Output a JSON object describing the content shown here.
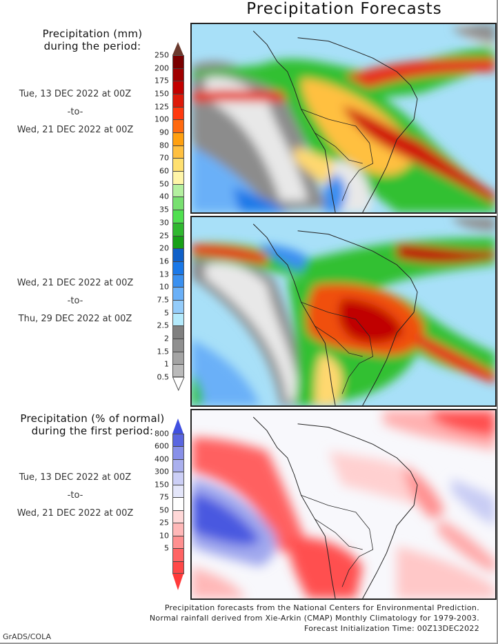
{
  "title": "Precipitation Forecasts",
  "legend_mm": {
    "title_line1": "Precipitation (mm)",
    "title_line2": "during the period:",
    "levels": [
      "250",
      "200",
      "175",
      "150",
      "125",
      "100",
      "90",
      "80",
      "70",
      "60",
      "50",
      "40",
      "35",
      "30",
      "25",
      "20",
      "16",
      "13",
      "10",
      "7.5",
      "5",
      "2.5",
      "2",
      "1.5",
      "1",
      "0.5"
    ],
    "colors": [
      "#7a0000",
      "#a00000",
      "#c20000",
      "#dd1a0a",
      "#ff3a10",
      "#ff6a10",
      "#ffa010",
      "#ffc040",
      "#ffe070",
      "#fff5a8",
      "#b4f0a0",
      "#78e070",
      "#50e050",
      "#30b830",
      "#18a018",
      "#1060c8",
      "#1a78e8",
      "#3a90f0",
      "#6ab0f8",
      "#94ccfa",
      "#b4eafc",
      "#808080",
      "#909090",
      "#a4a4a4",
      "#bababa"
    ],
    "top_arrow_color": "#6b3a2e"
  },
  "panel1": {
    "start": "Tue, 13 DEC 2022 at 00Z",
    "sep": "-to-",
    "end": "Wed, 21 DEC 2022 at 00Z"
  },
  "panel2": {
    "start": "Wed, 21 DEC 2022 at 00Z",
    "sep": "-to-",
    "end": "Thu, 29 DEC 2022 at 00Z"
  },
  "legend_pct": {
    "title_line1": "Precipitation (% of normal)",
    "title_line2": "during the first period:",
    "levels": [
      "800",
      "600",
      "400",
      "300",
      "150",
      "75",
      "50",
      "25",
      "10",
      "5"
    ],
    "colors": [
      "#5a66e0",
      "#8890e8",
      "#aab0ee",
      "#cccff6",
      "#e4e6fa",
      "#ffffff",
      "#ffd8d8",
      "#ffb8b8",
      "#ff9090",
      "#ff6464",
      "#ff4848"
    ],
    "top_arrow_color": "#4050e0",
    "bottom_arrow_color": "#ff3a3a"
  },
  "panel3": {
    "start": "Tue, 13 DEC 2022 at 00Z",
    "sep": "-to-",
    "end": "Wed, 21 DEC 2022 at 00Z"
  },
  "footer": {
    "line1": "Precipitation forecasts from the National Centers for Environmental Prediction.",
    "line2": "Normal rainfall derived from Xie-Arkin (CMAP) Monthly Climatology for 1979-2003.",
    "line3": "Forecast Initialization Time: 00Z13DEC2022"
  },
  "credit": "GrADS/COLA"
}
